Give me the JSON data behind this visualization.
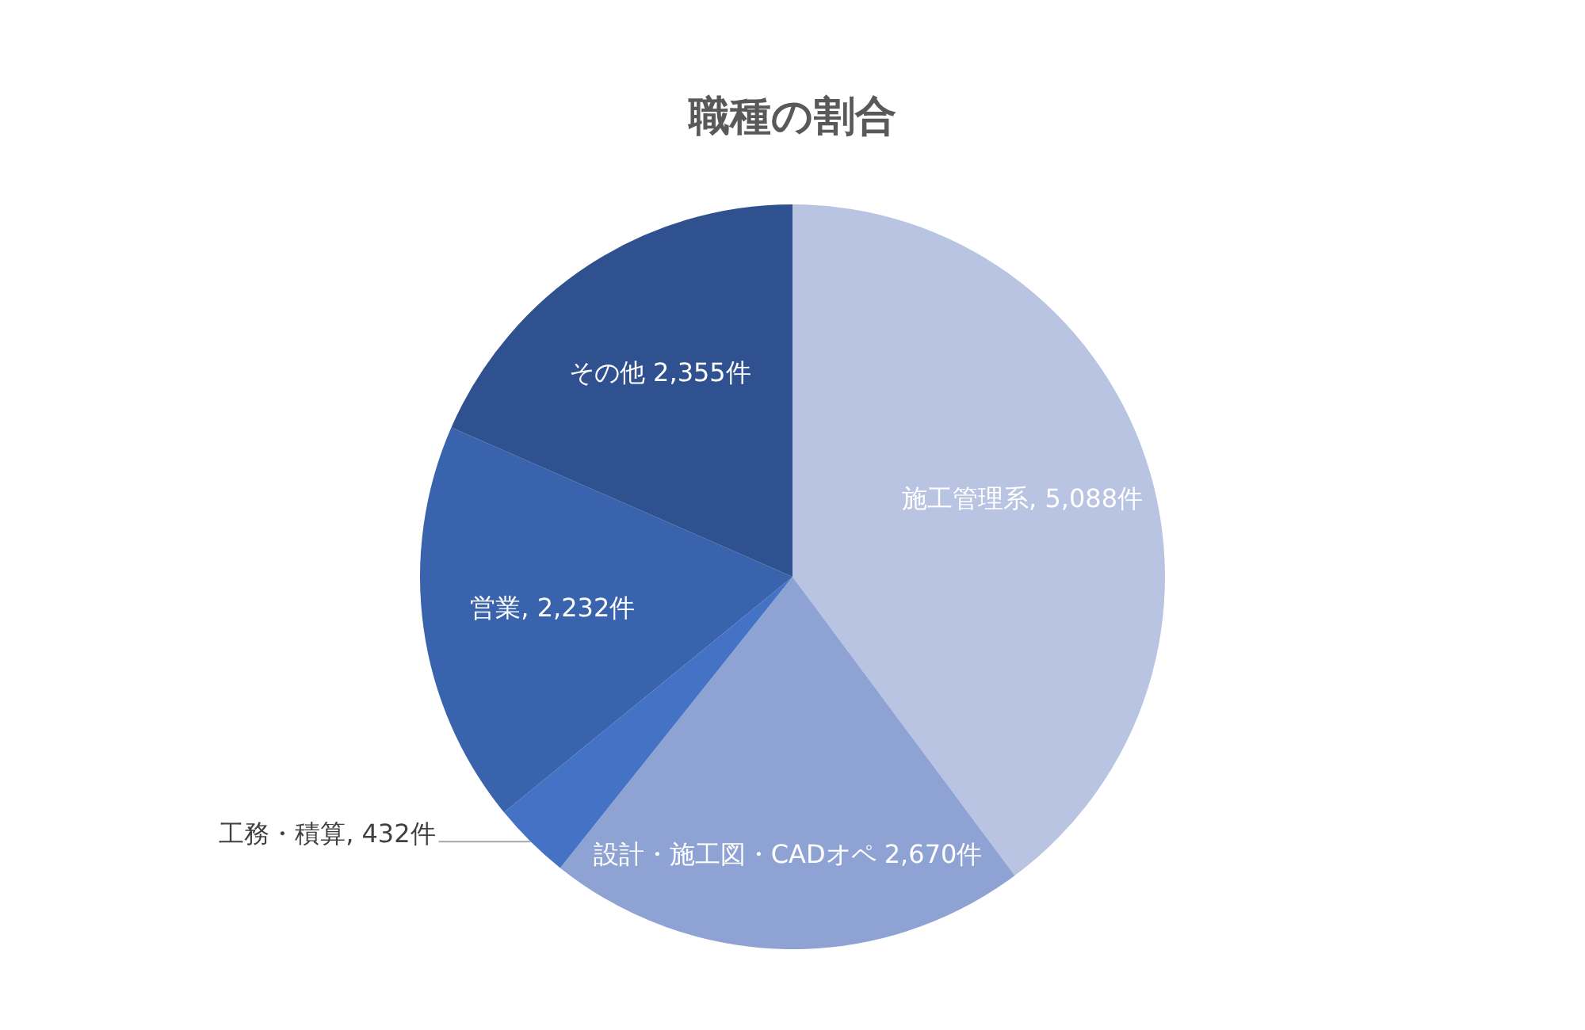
{
  "chart_data": {
    "type": "pie",
    "title": "職種の割合",
    "categories": [
      "施工管理系",
      "設計・施工図・CADオペ",
      "工務・積算",
      "営業",
      "その他"
    ],
    "values": [
      5088,
      2670,
      432,
      2232,
      2355
    ],
    "colors": [
      "#b9c3e2",
      "#8fa2d4",
      "#4472c4",
      "#3a63ad",
      "#2f5190"
    ],
    "value_labels": [
      "5,088件",
      "2,670件",
      "432件",
      "2,232件",
      "2,355件"
    ]
  }
}
